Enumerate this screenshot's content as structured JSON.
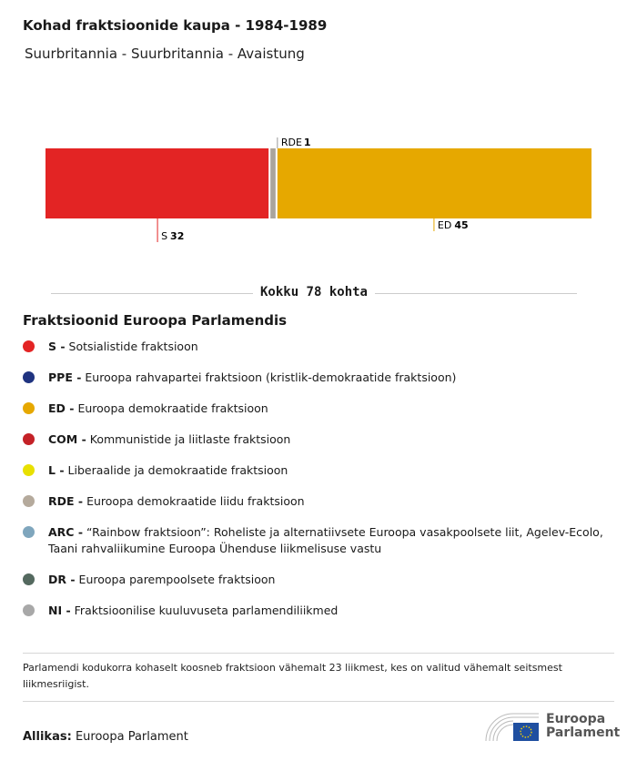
{
  "title": "Kohad fraktsioonide kaupa - 1984-1989",
  "subtitle": "Suurbritannia - Suurbritannia - Avaistung",
  "chart_data": {
    "type": "bar",
    "orientation": "stacked-horizontal",
    "categories": [
      "S",
      "RDE",
      "ED"
    ],
    "values": [
      32,
      1,
      45
    ],
    "colors": [
      "#e32424",
      "#aaa49c",
      "#e6a800"
    ],
    "total": 78
  },
  "total_label": "Kokku 78 kohta",
  "legend_title": "Fraktsioonid Euroopa Parlamendis",
  "legend": [
    {
      "code": "S -",
      "name": "Sotsialistide fraktsioon",
      "color": "#e32424"
    },
    {
      "code": "PPE -",
      "name": "Euroopa rahvapartei fraktsioon (kristlik-demokraatide fraktsioon)",
      "color": "#1f3380"
    },
    {
      "code": "ED -",
      "name": "Euroopa demokraatide fraktsioon",
      "color": "#e6a800"
    },
    {
      "code": "COM -",
      "name": "Kommunistide ja liitlaste fraktsioon",
      "color": "#c42127"
    },
    {
      "code": "L -",
      "name": "Liberaalide ja demokraatide fraktsioon",
      "color": "#e8e000"
    },
    {
      "code": "RDE -",
      "name": "Euroopa demokraatide liidu fraktsioon",
      "color": "#b5aa9c"
    },
    {
      "code": "ARC -",
      "name": "“Rainbow fraktsioon”: Roheliste ja alternatiivsete Euroopa vasakpoolsete liit, Agelev-Ecolo, Taani rahvaliikumine Euroopa Ühenduse liikmelisuse vastu",
      "color": "#7fa6bd"
    },
    {
      "code": "DR -",
      "name": "Euroopa parempoolsete fraktsioon",
      "color": "#54695f"
    },
    {
      "code": "NI -",
      "name": "Fraktsioonilise kuuluvuseta parlamendiliikmed",
      "color": "#a8a8a8"
    }
  ],
  "note": "Parlamendi kodukorra kohaselt koosneb fraktsioon vähemalt 23 liikmest, kes on valitud vähemalt seitsmest liikmesriigist.",
  "source_label": "Allikas:",
  "source": "Euroopa Parlament",
  "logo": {
    "line1": "Euroopa",
    "line2": "Parlament"
  }
}
